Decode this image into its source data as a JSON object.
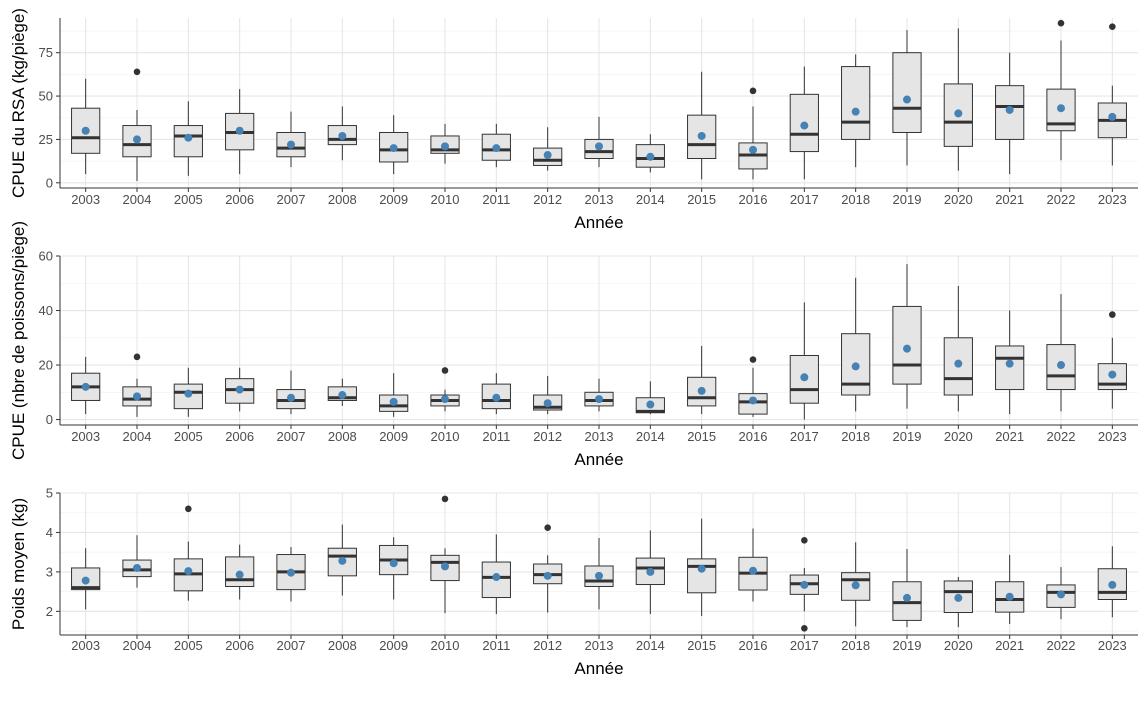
{
  "style": {
    "box_fill": "#e5e5e5",
    "line_color": "#333333",
    "mean_color": "#4682b4",
    "grid_major": "#e6e6e6",
    "grid_minor": "#f3f3f3",
    "axis_text": "#4d4d4d"
  },
  "chart_data": [
    {
      "type": "boxplot",
      "xlabel": "Année",
      "ylabel": "CPUE du RSA (kg/piège)",
      "ylim": [
        -3,
        95
      ],
      "yticks": [
        0,
        25,
        50,
        75
      ],
      "grid": true,
      "categories": [
        "2003",
        "2004",
        "2005",
        "2006",
        "2007",
        "2008",
        "2009",
        "2010",
        "2011",
        "2012",
        "2013",
        "2014",
        "2015",
        "2016",
        "2017",
        "2018",
        "2019",
        "2020",
        "2021",
        "2022",
        "2023"
      ],
      "boxes": [
        {
          "min": 5,
          "q1": 17,
          "median": 26,
          "q3": 43,
          "max": 60,
          "mean": 30,
          "outliers": []
        },
        {
          "min": 1,
          "q1": 15,
          "median": 22,
          "q3": 33,
          "max": 42,
          "mean": 25,
          "outliers": [
            64
          ]
        },
        {
          "min": 4,
          "q1": 15,
          "median": 27,
          "q3": 33,
          "max": 47,
          "mean": 26,
          "outliers": []
        },
        {
          "min": 5,
          "q1": 19,
          "median": 29,
          "q3": 40,
          "max": 54,
          "mean": 30,
          "outliers": []
        },
        {
          "min": 9,
          "q1": 15,
          "median": 20,
          "q3": 29,
          "max": 41,
          "mean": 22,
          "outliers": []
        },
        {
          "min": 13,
          "q1": 22,
          "median": 25,
          "q3": 33,
          "max": 44,
          "mean": 27,
          "outliers": []
        },
        {
          "min": 5,
          "q1": 12,
          "median": 19,
          "q3": 29,
          "max": 39,
          "mean": 20,
          "outliers": []
        },
        {
          "min": 11,
          "q1": 17,
          "median": 19,
          "q3": 27,
          "max": 34,
          "mean": 21,
          "outliers": []
        },
        {
          "min": 9,
          "q1": 13,
          "median": 19,
          "q3": 28,
          "max": 34,
          "mean": 20,
          "outliers": []
        },
        {
          "min": 7,
          "q1": 10,
          "median": 13,
          "q3": 20,
          "max": 32,
          "mean": 16,
          "outliers": []
        },
        {
          "min": 9,
          "q1": 14,
          "median": 18,
          "q3": 25,
          "max": 38,
          "mean": 21,
          "outliers": []
        },
        {
          "min": 6,
          "q1": 9,
          "median": 14,
          "q3": 22,
          "max": 28,
          "mean": 15,
          "outliers": []
        },
        {
          "min": 2,
          "q1": 14,
          "median": 22,
          "q3": 39,
          "max": 64,
          "mean": 27,
          "outliers": []
        },
        {
          "min": 2,
          "q1": 8,
          "median": 16,
          "q3": 23,
          "max": 44,
          "mean": 19,
          "outliers": [
            53
          ]
        },
        {
          "min": 2,
          "q1": 18,
          "median": 28,
          "q3": 51,
          "max": 67,
          "mean": 33,
          "outliers": []
        },
        {
          "min": 9,
          "q1": 25,
          "median": 35,
          "q3": 67,
          "max": 74,
          "mean": 41,
          "outliers": []
        },
        {
          "min": 10,
          "q1": 29,
          "median": 43,
          "q3": 75,
          "max": 88,
          "mean": 48,
          "outliers": []
        },
        {
          "min": 7,
          "q1": 21,
          "median": 35,
          "q3": 57,
          "max": 89,
          "mean": 40,
          "outliers": []
        },
        {
          "min": 5,
          "q1": 25,
          "median": 44,
          "q3": 56,
          "max": 75,
          "mean": 42,
          "outliers": []
        },
        {
          "min": 13,
          "q1": 30,
          "median": 34,
          "q3": 54,
          "max": 82,
          "mean": 43,
          "outliers": [
            92
          ]
        },
        {
          "min": 10,
          "q1": 26,
          "median": 36,
          "q3": 46,
          "max": 56,
          "mean": 38,
          "outliers": [
            90
          ]
        }
      ]
    },
    {
      "type": "boxplot",
      "xlabel": "Année",
      "ylabel": "CPUE (nbre de poissons/piège)",
      "ylim": [
        -2,
        60
      ],
      "yticks": [
        0,
        20,
        40,
        60
      ],
      "grid": true,
      "categories": [
        "2003",
        "2004",
        "2005",
        "2006",
        "2007",
        "2008",
        "2009",
        "2010",
        "2011",
        "2012",
        "2013",
        "2014",
        "2015",
        "2016",
        "2017",
        "2018",
        "2019",
        "2020",
        "2021",
        "2022",
        "2023"
      ],
      "boxes": [
        {
          "min": 2,
          "q1": 7,
          "median": 12,
          "q3": 17,
          "max": 23,
          "mean": 12,
          "outliers": []
        },
        {
          "min": 1,
          "q1": 5,
          "median": 7.5,
          "q3": 12,
          "max": 15,
          "mean": 8.5,
          "outliers": [
            23
          ]
        },
        {
          "min": 1,
          "q1": 4,
          "median": 10,
          "q3": 13,
          "max": 19,
          "mean": 9.5,
          "outliers": []
        },
        {
          "min": 3,
          "q1": 6,
          "median": 11,
          "q3": 15,
          "max": 19,
          "mean": 11,
          "outliers": []
        },
        {
          "min": 2,
          "q1": 4,
          "median": 7,
          "q3": 11,
          "max": 18,
          "mean": 8,
          "outliers": []
        },
        {
          "min": 5,
          "q1": 7,
          "median": 8,
          "q3": 12,
          "max": 15,
          "mean": 9,
          "outliers": []
        },
        {
          "min": 1,
          "q1": 3,
          "median": 5,
          "q3": 9,
          "max": 17,
          "mean": 6.5,
          "outliers": []
        },
        {
          "min": 3,
          "q1": 5,
          "median": 7,
          "q3": 9,
          "max": 11,
          "mean": 7.5,
          "outliers": [
            18
          ]
        },
        {
          "min": 2,
          "q1": 4,
          "median": 7,
          "q3": 13,
          "max": 17,
          "mean": 8,
          "outliers": []
        },
        {
          "min": 2,
          "q1": 3.5,
          "median": 4.5,
          "q3": 9,
          "max": 16,
          "mean": 6,
          "outliers": []
        },
        {
          "min": 3,
          "q1": 5,
          "median": 7,
          "q3": 10,
          "max": 15,
          "mean": 7.5,
          "outliers": []
        },
        {
          "min": 2,
          "q1": 2.5,
          "median": 3,
          "q3": 8,
          "max": 14,
          "mean": 5.5,
          "outliers": []
        },
        {
          "min": 2,
          "q1": 5,
          "median": 8,
          "q3": 15.5,
          "max": 27,
          "mean": 10.5,
          "outliers": []
        },
        {
          "min": 1,
          "q1": 2,
          "median": 6.5,
          "q3": 9.5,
          "max": 19,
          "mean": 7,
          "outliers": [
            22
          ]
        },
        {
          "min": 0,
          "q1": 6,
          "median": 11,
          "q3": 23.5,
          "max": 43,
          "mean": 15.5,
          "outliers": []
        },
        {
          "min": 3,
          "q1": 9,
          "median": 13,
          "q3": 31.5,
          "max": 52,
          "mean": 19.5,
          "outliers": []
        },
        {
          "min": 4,
          "q1": 13,
          "median": 20,
          "q3": 41.5,
          "max": 57,
          "mean": 26,
          "outliers": []
        },
        {
          "min": 3,
          "q1": 9,
          "median": 15,
          "q3": 30,
          "max": 49,
          "mean": 20.5,
          "outliers": []
        },
        {
          "min": 2,
          "q1": 11,
          "median": 22.5,
          "q3": 27,
          "max": 40,
          "mean": 20.5,
          "outliers": []
        },
        {
          "min": 3,
          "q1": 11,
          "median": 16,
          "q3": 27.5,
          "max": 46,
          "mean": 20,
          "outliers": []
        },
        {
          "min": 4,
          "q1": 11,
          "median": 13,
          "q3": 20.5,
          "max": 30,
          "mean": 16.5,
          "outliers": [
            38.5
          ]
        }
      ]
    },
    {
      "type": "boxplot",
      "xlabel": "Année",
      "ylabel": "Poids moyen (kg)",
      "ylim": [
        1.4,
        5.0
      ],
      "yticks": [
        2,
        3,
        4,
        5
      ],
      "grid": true,
      "categories": [
        "2003",
        "2004",
        "2005",
        "2006",
        "2007",
        "2008",
        "2009",
        "2010",
        "2011",
        "2012",
        "2013",
        "2014",
        "2015",
        "2016",
        "2017",
        "2018",
        "2019",
        "2020",
        "2021",
        "2022",
        "2023"
      ],
      "boxes": [
        {
          "min": 2.05,
          "q1": 2.55,
          "median": 2.6,
          "q3": 3.1,
          "max": 3.6,
          "mean": 2.78,
          "outliers": []
        },
        {
          "min": 2.6,
          "q1": 2.88,
          "median": 3.05,
          "q3": 3.3,
          "max": 3.93,
          "mean": 3.1,
          "outliers": []
        },
        {
          "min": 2.27,
          "q1": 2.52,
          "median": 2.95,
          "q3": 3.33,
          "max": 3.77,
          "mean": 3.02,
          "outliers": [
            4.6
          ]
        },
        {
          "min": 2.3,
          "q1": 2.63,
          "median": 2.8,
          "q3": 3.38,
          "max": 3.69,
          "mean": 2.93,
          "outliers": []
        },
        {
          "min": 2.25,
          "q1": 2.55,
          "median": 3.0,
          "q3": 3.44,
          "max": 3.63,
          "mean": 2.98,
          "outliers": []
        },
        {
          "min": 2.4,
          "q1": 2.9,
          "median": 3.4,
          "q3": 3.6,
          "max": 4.2,
          "mean": 3.28,
          "outliers": []
        },
        {
          "min": 2.3,
          "q1": 2.93,
          "median": 3.3,
          "q3": 3.67,
          "max": 3.88,
          "mean": 3.22,
          "outliers": []
        },
        {
          "min": 1.95,
          "q1": 2.78,
          "median": 3.24,
          "q3": 3.42,
          "max": 3.6,
          "mean": 3.14,
          "outliers": [
            4.85
          ]
        },
        {
          "min": 1.93,
          "q1": 2.35,
          "median": 2.86,
          "q3": 3.25,
          "max": 3.95,
          "mean": 2.87,
          "outliers": []
        },
        {
          "min": 1.97,
          "q1": 2.7,
          "median": 2.93,
          "q3": 3.2,
          "max": 3.42,
          "mean": 2.9,
          "outliers": [
            4.12
          ]
        },
        {
          "min": 2.05,
          "q1": 2.63,
          "median": 2.77,
          "q3": 3.15,
          "max": 3.86,
          "mean": 2.9,
          "outliers": []
        },
        {
          "min": 1.93,
          "q1": 2.68,
          "median": 3.1,
          "q3": 3.35,
          "max": 4.05,
          "mean": 3.0,
          "outliers": []
        },
        {
          "min": 1.88,
          "q1": 2.47,
          "median": 3.14,
          "q3": 3.33,
          "max": 4.35,
          "mean": 3.08,
          "outliers": []
        },
        {
          "min": 2.25,
          "q1": 2.54,
          "median": 2.97,
          "q3": 3.37,
          "max": 4.1,
          "mean": 3.03,
          "outliers": []
        },
        {
          "min": 2.0,
          "q1": 2.43,
          "median": 2.7,
          "q3": 2.92,
          "max": 3.1,
          "mean": 2.67,
          "outliers": [
            3.8,
            1.57
          ]
        },
        {
          "min": 1.62,
          "q1": 2.28,
          "median": 2.8,
          "q3": 2.98,
          "max": 3.75,
          "mean": 2.66,
          "outliers": []
        },
        {
          "min": 1.6,
          "q1": 1.77,
          "median": 2.22,
          "q3": 2.75,
          "max": 3.58,
          "mean": 2.34,
          "outliers": []
        },
        {
          "min": 1.6,
          "q1": 1.97,
          "median": 2.5,
          "q3": 2.77,
          "max": 2.87,
          "mean": 2.34,
          "outliers": []
        },
        {
          "min": 1.68,
          "q1": 1.98,
          "median": 2.3,
          "q3": 2.75,
          "max": 3.43,
          "mean": 2.37,
          "outliers": []
        },
        {
          "min": 1.8,
          "q1": 2.1,
          "median": 2.48,
          "q3": 2.67,
          "max": 3.12,
          "mean": 2.43,
          "outliers": []
        },
        {
          "min": 1.85,
          "q1": 2.3,
          "median": 2.48,
          "q3": 3.08,
          "max": 3.65,
          "mean": 2.67,
          "outliers": []
        }
      ]
    }
  ]
}
